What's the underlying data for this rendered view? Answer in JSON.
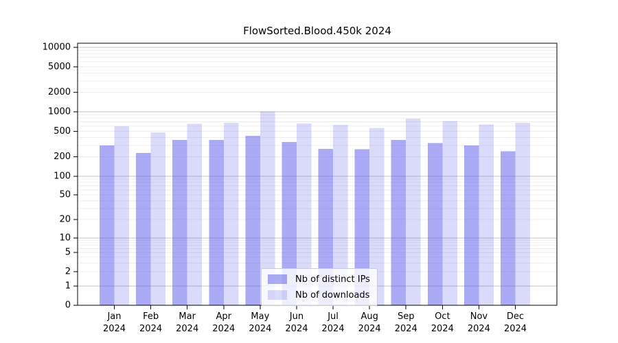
{
  "chart_data": {
    "type": "bar",
    "title": "FlowSorted.Blood.450k 2024",
    "categories": [
      "Jan 2024",
      "Feb 2024",
      "Mar 2024",
      "Apr 2024",
      "May 2024",
      "Jun 2024",
      "Jul 2024",
      "Aug 2024",
      "Sep 2024",
      "Oct 2024",
      "Nov 2024",
      "Dec 2024"
    ],
    "series": [
      {
        "name": "Nb of distinct IPs",
        "color": "rgba(85,85,235,0.5)",
        "values": [
          300,
          230,
          365,
          365,
          425,
          340,
          265,
          262,
          365,
          330,
          300,
          245
        ]
      },
      {
        "name": "Nb of downloads",
        "color": "rgba(85,85,235,0.22)",
        "values": [
          600,
          480,
          650,
          675,
          1010,
          660,
          630,
          560,
          780,
          720,
          635,
          675
        ]
      }
    ],
    "xlabel": "",
    "ylabel": "",
    "yscale": "symlog",
    "ylim": [
      0,
      11600
    ],
    "ytick_labels": [
      "0",
      "1",
      "2",
      "5",
      "10",
      "20",
      "50",
      "100",
      "200",
      "500",
      "1000",
      "2000",
      "5000",
      "10000"
    ],
    "grid": "both",
    "legend_position": "lower center",
    "colors": {
      "grid_major": "#c3c3c3",
      "grid_minor": "#e9e9e9",
      "spine": "#000000",
      "text": "#000000",
      "background": "#ffffff"
    }
  }
}
